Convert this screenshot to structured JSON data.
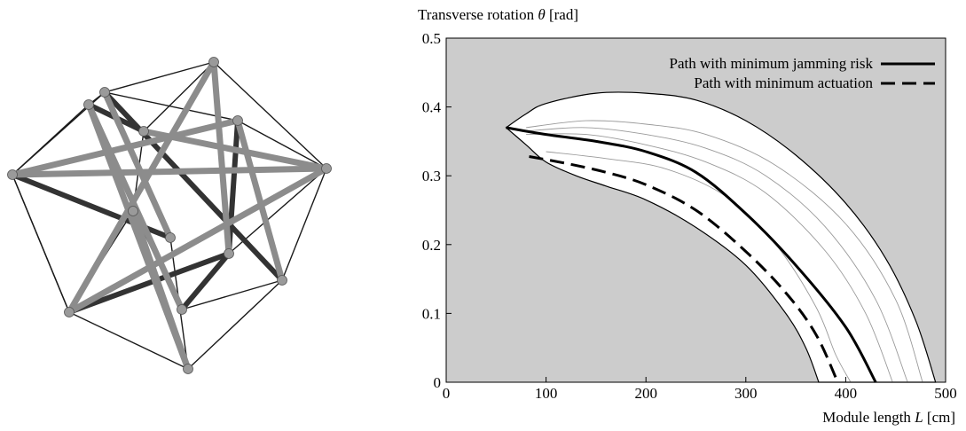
{
  "illustration": {
    "subject": "tensegrity structure rendering",
    "colors": {
      "strut": "#8c8c8c",
      "strut_dark": "#333333",
      "cable": "#1a1a1a",
      "node": "#9a9a9a"
    }
  },
  "chart_data": {
    "type": "line",
    "title": "",
    "ylabel": "Transverse rotation θ [rad]",
    "ylabel_prefix": "Transverse rotation ",
    "ylabel_symbol": "θ",
    "ylabel_unit": " [rad]",
    "xlabel": "Module length L [cm]",
    "xlabel_prefix": "Module length ",
    "xlabel_symbol": "L",
    "xlabel_unit": " [cm]",
    "xlim": [
      0,
      500
    ],
    "ylim": [
      0,
      0.5
    ],
    "xticks": [
      0,
      100,
      200,
      300,
      400,
      500
    ],
    "yticks": [
      0,
      0.1,
      0.2,
      0.3,
      0.4,
      0.5
    ],
    "xtick_labels": [
      "0",
      "100",
      "200",
      "300",
      "400",
      "500"
    ],
    "ytick_labels": [
      "0",
      "0.1",
      "0.2",
      "0.3",
      "0.4",
      "0.5"
    ],
    "grid": false,
    "background_color": "#cccccc",
    "feasible_region_color": "#ffffff",
    "legend_position": "top-right",
    "feasible_region": {
      "upper_boundary": [
        [
          60,
          0.37
        ],
        [
          80,
          0.39
        ],
        [
          100,
          0.405
        ],
        [
          150,
          0.42
        ],
        [
          200,
          0.42
        ],
        [
          250,
          0.41
        ],
        [
          300,
          0.38
        ],
        [
          350,
          0.33
        ],
        [
          400,
          0.26
        ],
        [
          440,
          0.18
        ],
        [
          470,
          0.09
        ],
        [
          490,
          0
        ]
      ],
      "lower_boundary": [
        [
          60,
          0.37
        ],
        [
          80,
          0.345
        ],
        [
          100,
          0.32
        ],
        [
          130,
          0.3
        ],
        [
          160,
          0.285
        ],
        [
          200,
          0.265
        ],
        [
          250,
          0.225
        ],
        [
          300,
          0.17
        ],
        [
          340,
          0.1
        ],
        [
          360,
          0.05
        ],
        [
          373,
          0
        ]
      ]
    },
    "series": [
      {
        "name": "Path with minimum jamming risk",
        "style": "solid-thick",
        "color": "#000000",
        "points": [
          [
            60,
            0.37
          ],
          [
            100,
            0.36
          ],
          [
            150,
            0.35
          ],
          [
            200,
            0.335
          ],
          [
            250,
            0.305
          ],
          [
            300,
            0.245
          ],
          [
            350,
            0.17
          ],
          [
            400,
            0.08
          ],
          [
            430,
            0
          ]
        ]
      },
      {
        "name": "Path with minimum actuation",
        "style": "dashed-thick",
        "color": "#000000",
        "points": [
          [
            83,
            0.328
          ],
          [
            120,
            0.318
          ],
          [
            160,
            0.305
          ],
          [
            200,
            0.287
          ],
          [
            250,
            0.25
          ],
          [
            300,
            0.19
          ],
          [
            340,
            0.13
          ],
          [
            370,
            0.07
          ],
          [
            392,
            0
          ]
        ]
      }
    ],
    "family_curves": {
      "color": "#9a9a9a",
      "curves": [
        [
          [
            80,
            0.36
          ],
          [
            140,
            0.36
          ],
          [
            200,
            0.345
          ],
          [
            260,
            0.32
          ],
          [
            320,
            0.275
          ],
          [
            380,
            0.19
          ],
          [
            420,
            0.1
          ],
          [
            447,
            0
          ]
        ],
        [
          [
            80,
            0.365
          ],
          [
            140,
            0.37
          ],
          [
            200,
            0.36
          ],
          [
            260,
            0.34
          ],
          [
            320,
            0.3
          ],
          [
            380,
            0.225
          ],
          [
            430,
            0.12
          ],
          [
            462,
            0
          ]
        ],
        [
          [
            80,
            0.37
          ],
          [
            140,
            0.38
          ],
          [
            200,
            0.375
          ],
          [
            260,
            0.36
          ],
          [
            330,
            0.315
          ],
          [
            400,
            0.23
          ],
          [
            450,
            0.12
          ],
          [
            477,
            0
          ]
        ],
        [
          [
            100,
            0.335
          ],
          [
            160,
            0.325
          ],
          [
            220,
            0.31
          ],
          [
            280,
            0.27
          ],
          [
            330,
            0.2
          ],
          [
            370,
            0.11
          ],
          [
            390,
            0.04
          ],
          [
            405,
            0
          ]
        ]
      ]
    }
  }
}
